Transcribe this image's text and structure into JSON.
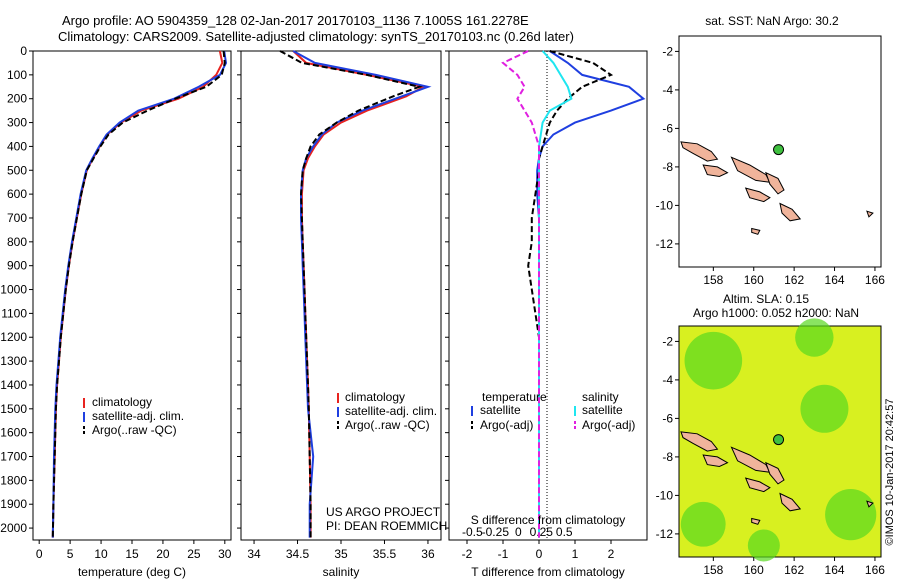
{
  "figure": {
    "title_line1": "Argo profile: AO 5904359_128 02-Jan-2017 20170103_1136 7.1005S 161.2278E",
    "title_line2": "Climatology: CARS2009. Satellite-adjusted climatology: synTS_20170103.nc (0.26d later)",
    "credit_project": "US ARGO PROJECT",
    "credit_pi": "PI: DEAN ROEMMICH",
    "stamp": "©IMOS 10-Jan-2017 20:42:57"
  },
  "colors": {
    "climatology": "#e8231f",
    "satellite": "#1f3fe0",
    "argo": "#000000",
    "salinity_satellite": "#1fe6f0",
    "salinity_argo": "#e020e0",
    "land": "#f0b49b",
    "float": "#40c040",
    "sla_light": "#d8f020",
    "sla_green": "#58d820"
  },
  "chart_data": [
    {
      "id": "temperature",
      "type": "line",
      "xlabel": "temperature (deg C)",
      "ylabel": "",
      "xlim": [
        -1,
        31
      ],
      "ylim": [
        2050,
        0
      ],
      "xticks": [
        0,
        5,
        10,
        15,
        20,
        25,
        30
      ],
      "yticks": [
        0,
        100,
        200,
        300,
        400,
        500,
        600,
        700,
        800,
        900,
        1000,
        1100,
        1200,
        1300,
        1400,
        1500,
        1600,
        1700,
        1800,
        1900,
        2000
      ],
      "legend": [
        "climatology",
        "satellite-adj. clim.",
        "Argo(..raw -QC)"
      ],
      "series": [
        {
          "name": "climatology",
          "style": "solid",
          "color_key": "climatology",
          "x": [
            29.2,
            29.6,
            28.6,
            26.5,
            22.5,
            16.5,
            13.2,
            11.0,
            9.8,
            8.7,
            7.7,
            6.8,
            6.1,
            5.4,
            4.8,
            4.3,
            3.9,
            3.5,
            3.2,
            2.9,
            2.7,
            2.5,
            2.3,
            2.2
          ],
          "y": [
            0,
            50,
            100,
            150,
            200,
            250,
            300,
            350,
            400,
            450,
            500,
            600,
            700,
            800,
            900,
            1000,
            1100,
            1200,
            1300,
            1400,
            1500,
            1700,
            1900,
            2040
          ]
        },
        {
          "name": "satellite-adj. clim.",
          "style": "solid",
          "color_key": "satellite",
          "x": [
            29.9,
            30.2,
            29.2,
            25.8,
            21.8,
            16.0,
            13.0,
            10.9,
            9.7,
            8.6,
            7.6,
            6.7,
            6.0,
            5.3,
            4.7,
            4.2,
            3.8,
            3.4,
            3.1,
            2.8,
            2.6,
            2.4,
            2.3,
            2.2
          ],
          "y": [
            0,
            50,
            100,
            150,
            200,
            250,
            300,
            350,
            400,
            450,
            500,
            600,
            700,
            800,
            900,
            1000,
            1100,
            1200,
            1300,
            1400,
            1500,
            1700,
            1900,
            2040
          ]
        },
        {
          "name": "Argo(..raw -QC)",
          "style": "dashed",
          "color_key": "argo",
          "x": [
            29.8,
            30.0,
            29.5,
            27.0,
            22.0,
            17.5,
            13.5,
            11.2,
            9.9,
            8.8,
            7.7,
            6.8,
            6.1,
            5.4,
            4.8,
            4.3,
            3.9,
            3.5,
            3.2,
            2.9,
            2.7,
            2.5,
            2.3,
            2.2
          ],
          "y": [
            0,
            50,
            100,
            150,
            200,
            250,
            300,
            350,
            400,
            450,
            500,
            600,
            700,
            800,
            900,
            1000,
            1100,
            1200,
            1300,
            1400,
            1500,
            1700,
            1900,
            2040
          ]
        }
      ]
    },
    {
      "id": "salinity",
      "type": "line",
      "xlabel": "salinity",
      "xlim": [
        33.85,
        36.15
      ],
      "ylim": [
        2050,
        0
      ],
      "xticks": [
        34,
        34.5,
        35,
        35.5,
        36
      ],
      "legend": [
        "climatology",
        "satellite-adj. clim.",
        "Argo(..raw -QC)"
      ],
      "series": [
        {
          "name": "climatology",
          "style": "solid",
          "color_key": "climatology",
          "x": [
            34.45,
            34.6,
            35.3,
            35.95,
            35.75,
            35.3,
            35.0,
            34.8,
            34.7,
            34.62,
            34.57,
            34.55,
            34.55,
            34.56,
            34.57,
            34.58,
            34.59,
            34.6,
            34.61,
            34.62,
            34.63,
            34.64,
            34.65,
            34.65
          ],
          "y": [
            0,
            50,
            100,
            150,
            190,
            250,
            300,
            350,
            400,
            450,
            500,
            600,
            700,
            800,
            900,
            1000,
            1100,
            1200,
            1300,
            1400,
            1500,
            1700,
            1900,
            2040
          ]
        },
        {
          "name": "satellite-adj. clim.",
          "style": "solid",
          "color_key": "satellite",
          "x": [
            34.45,
            34.7,
            35.4,
            36.0,
            35.7,
            35.25,
            34.95,
            34.78,
            34.68,
            34.6,
            34.56,
            34.54,
            34.54,
            34.55,
            34.56,
            34.57,
            34.58,
            34.59,
            34.6,
            34.61,
            34.62,
            34.68,
            34.64,
            34.64
          ],
          "y": [
            0,
            50,
            100,
            150,
            190,
            250,
            300,
            350,
            400,
            450,
            500,
            600,
            700,
            800,
            900,
            1000,
            1100,
            1200,
            1300,
            1400,
            1500,
            1700,
            1900,
            2040
          ]
        },
        {
          "name": "Argo(..raw -QC)",
          "style": "dashed",
          "color_key": "argo",
          "x": [
            34.3,
            34.55,
            35.3,
            35.9,
            35.6,
            35.2,
            34.95,
            34.75,
            34.65,
            34.6,
            34.56,
            34.54,
            34.55,
            34.56,
            34.57,
            34.58,
            34.59,
            34.6,
            34.61,
            34.62,
            34.63,
            34.64,
            34.65,
            34.65
          ],
          "y": [
            0,
            50,
            100,
            150,
            190,
            250,
            300,
            350,
            400,
            450,
            500,
            600,
            700,
            800,
            900,
            1000,
            1100,
            1200,
            1300,
            1400,
            1500,
            1700,
            1900,
            2040
          ]
        }
      ]
    },
    {
      "id": "difference",
      "type": "line",
      "xlabel": "T difference from climatology",
      "xlabel_top": "S difference from climatology",
      "xlim": [
        -2.5,
        3.0
      ],
      "ylim": [
        2050,
        0
      ],
      "xticks": [
        -2,
        -1,
        0,
        1,
        2
      ],
      "xticks_top": [
        -0.5,
        -0.25,
        0,
        0.25,
        0.5
      ],
      "legend_headers": [
        "temperature",
        "salinity"
      ],
      "legend": [
        "satellite",
        "Argo(-adj)",
        "satellite",
        "Argo(-adj)"
      ],
      "series": [
        {
          "name": "temperature satellite",
          "style": "solid",
          "color_key": "satellite",
          "x": [
            0.3,
            0.8,
            1.2,
            2.5,
            2.9,
            2.0,
            1.0,
            0.4,
            0.1,
            0.0,
            -0.05,
            -0.05,
            0.0,
            0.0,
            0.0,
            0.0,
            0.0,
            0.0,
            0.0,
            0.0,
            0.0,
            0.0,
            0.0,
            0.0
          ],
          "y": [
            0,
            50,
            100,
            150,
            200,
            250,
            300,
            350,
            400,
            450,
            500,
            600,
            700,
            800,
            900,
            1000,
            1100,
            1200,
            1300,
            1400,
            1500,
            1700,
            1900,
            2040
          ]
        },
        {
          "name": "temperature Argo(-adj)",
          "style": "dashed",
          "color_key": "argo",
          "x": [
            0.3,
            1.5,
            2.0,
            1.2,
            0.8,
            0.5,
            0.3,
            0.2,
            0.1,
            0.0,
            0.0,
            -0.1,
            -0.2,
            -0.2,
            -0.3,
            -0.2,
            -0.1,
            0.0,
            0.0,
            0.0,
            0.0,
            0.0,
            0.0,
            0.0
          ],
          "y": [
            0,
            50,
            100,
            150,
            200,
            250,
            300,
            350,
            400,
            450,
            500,
            600,
            700,
            800,
            900,
            1000,
            1100,
            1200,
            1300,
            1400,
            1500,
            1700,
            1900,
            2040
          ]
        },
        {
          "name": "salinity satellite",
          "style": "solid",
          "color_key": "salinity_satellite",
          "x": [
            0.1,
            0.4,
            0.6,
            0.8,
            0.9,
            0.3,
            0.1,
            0.05,
            0.0,
            0.0,
            0.0,
            0.0,
            0.0,
            0.0,
            0.0,
            0.0,
            0.0,
            0.0,
            0.0,
            0.0,
            0.0,
            0.0,
            0.0,
            0.0
          ],
          "y": [
            0,
            50,
            100,
            150,
            200,
            250,
            300,
            350,
            400,
            450,
            500,
            600,
            700,
            800,
            900,
            1000,
            1100,
            1200,
            1300,
            1400,
            1500,
            1700,
            1900,
            2040
          ]
        },
        {
          "name": "salinity Argo(-adj)",
          "style": "dashed",
          "color_key": "salinity_argo",
          "x": [
            -0.3,
            -1.0,
            -0.6,
            -0.4,
            -0.6,
            -0.4,
            -0.2,
            -0.1,
            0.0,
            0.0,
            0.0,
            0.0,
            0.0,
            0.0,
            0.0,
            0.0,
            0.0,
            0.0,
            0.0,
            0.0,
            0.0,
            0.0,
            0.0,
            0.0
          ],
          "y": [
            0,
            50,
            100,
            150,
            200,
            250,
            300,
            350,
            400,
            450,
            500,
            600,
            700,
            800,
            900,
            1000,
            1100,
            1200,
            1300,
            1400,
            1500,
            1700,
            1900,
            2040
          ]
        }
      ]
    },
    {
      "id": "map_sst",
      "type": "map",
      "title": "sat. SST: NaN  Argo: 30.2",
      "xlim": [
        156.3,
        166.3
      ],
      "ylim": [
        -13.2,
        -1.2
      ],
      "xticks": [
        158,
        160,
        162,
        164,
        166
      ],
      "yticks": [
        -2,
        -4,
        -6,
        -8,
        -10,
        -12
      ],
      "float_position": [
        161.2278,
        -7.1005
      ]
    },
    {
      "id": "map_sla",
      "type": "map",
      "title_line1": "Altim. SLA: 0.15",
      "title_line2": "Argo h1000: 0.052 h2000: NaN",
      "xlim": [
        156.3,
        166.3
      ],
      "ylim": [
        -13.2,
        -1.2
      ],
      "xticks": [
        158,
        160,
        162,
        164,
        166
      ],
      "yticks": [
        -2,
        -4,
        -6,
        -8,
        -10,
        -12
      ],
      "float_position": [
        161.2278,
        -7.1005
      ]
    }
  ]
}
